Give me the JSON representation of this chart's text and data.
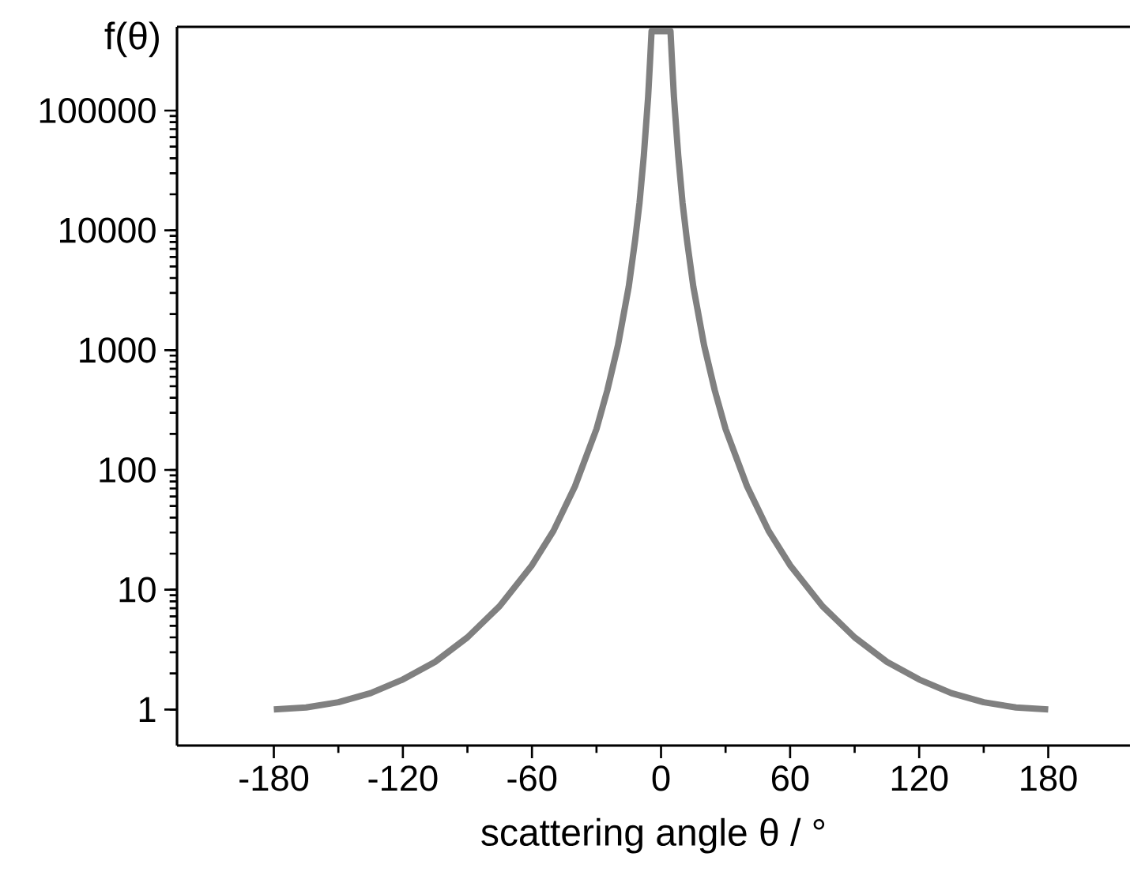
{
  "chart_data": {
    "type": "line",
    "xlabel": "scattering angle θ / °",
    "ylabel": "f(θ)",
    "log": "y",
    "color": "#808080",
    "marker": "none",
    "line_style": "solid",
    "x": [
      -180,
      -165,
      -150,
      -135,
      -120,
      -105,
      -90,
      -75,
      -60,
      -50,
      -40,
      -30,
      -25,
      -20,
      -15,
      -12,
      -10,
      -8,
      -6,
      -5,
      -4.4,
      null,
      4.4,
      5,
      6,
      8,
      10,
      12,
      15,
      20,
      25,
      30,
      40,
      50,
      60,
      75,
      90,
      105,
      120,
      135,
      150,
      165,
      180
    ],
    "values": [
      1,
      1.04,
      1.15,
      1.37,
      1.78,
      2.5,
      4,
      7.3,
      16,
      31,
      73,
      220,
      460,
      1100,
      3400,
      8400,
      17000,
      42000,
      130000,
      280000,
      460000,
      null,
      460000,
      280000,
      130000,
      42000,
      17000,
      8400,
      3400,
      1100,
      460,
      220,
      73,
      31,
      16,
      7.3,
      4,
      2.5,
      1.78,
      1.37,
      1.15,
      1.04,
      1
    ],
    "xlim": [
      -225,
      218
    ],
    "ylim": [
      0.5,
      500000
    ],
    "xticks": [
      -180,
      -120,
      -60,
      0,
      60,
      120,
      180
    ],
    "yticks": [
      1,
      10,
      100,
      1000,
      10000,
      100000
    ]
  }
}
